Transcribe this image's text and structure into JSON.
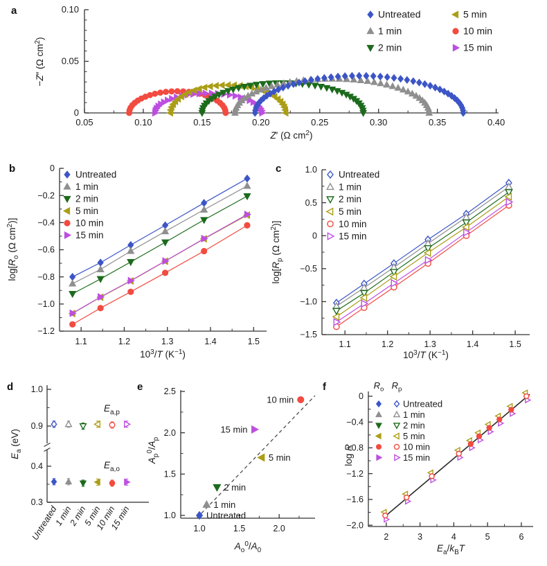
{
  "panel_labels": {
    "a": "a",
    "b": "b",
    "c": "c",
    "d": "d",
    "e": "e",
    "f": "f"
  },
  "figure": {
    "background": "#ffffff",
    "axis_color": "#333333",
    "fit_line_color": "#2b2b2b",
    "treatments": [
      {
        "label": "Untreated",
        "marker": "diamond",
        "color": "#3c55c6"
      },
      {
        "label": "1 min",
        "marker": "tri-up",
        "color": "#8f8f8f"
      },
      {
        "label": "2 min",
        "marker": "tri-down",
        "color": "#1c6b1c"
      },
      {
        "label": "5 min",
        "marker": "tri-left",
        "color": "#ab9e17"
      },
      {
        "label": "10 min",
        "marker": "circle",
        "color": "#f24b40"
      },
      {
        "label": "15 min",
        "marker": "tri-right",
        "color": "#bd4fe0"
      }
    ]
  },
  "chart_data": [
    {
      "panel": "a",
      "type": "scatter",
      "subtype": "nyquist",
      "xlabel": "*Z*′ (Ω cm^2^)",
      "ylabel": "−*Z*″ (Ω cm^2^)",
      "xlim": [
        0.05,
        0.402
      ],
      "ylim": [
        0,
        0.1
      ],
      "xticks": {
        "values": [
          0.05,
          0.1,
          0.15,
          0.2,
          0.25,
          0.3,
          0.35,
          0.4
        ],
        "labels": [
          "0.05",
          "0.10",
          "0.15",
          "0.20",
          "0.25",
          "0.30",
          "0.35",
          "0.40"
        ]
      },
      "yticks": {
        "values": [
          0,
          0.05,
          0.1
        ],
        "labels": [
          "0",
          "0.05",
          "0.10"
        ]
      },
      "minor": {
        "x": 0.025,
        "y": 0.01
      },
      "legend_columns": [
        [
          "Untreated",
          "1 min",
          "2 min"
        ],
        [
          "5 min",
          "10 min",
          "15 min"
        ]
      ],
      "series": [
        {
          "name": "10 min",
          "x_start": 0.088,
          "x_end": 0.17,
          "peak": 0.021,
          "points": 26
        },
        {
          "name": "15 min",
          "x_start": 0.11,
          "x_end": 0.201,
          "peak": 0.019,
          "points": 27
        },
        {
          "name": "5 min",
          "x_start": 0.123,
          "x_end": 0.221,
          "peak": 0.027,
          "points": 30
        },
        {
          "name": "2 min",
          "x_start": 0.15,
          "x_end": 0.287,
          "peak": 0.029,
          "points": 38
        },
        {
          "name": "1 min",
          "x_start": 0.178,
          "x_end": 0.343,
          "peak": 0.033,
          "points": 42
        },
        {
          "name": "Untreated",
          "x_start": 0.195,
          "x_end": 0.372,
          "peak": 0.036,
          "points": 46
        }
      ]
    },
    {
      "panel": "b",
      "type": "line",
      "subtype": "arrhenius",
      "marker_fill": "filled",
      "xlabel": "10^3^/*T* (K^−1^)",
      "ylabel": "log[*R*~o~ (Ω cm^2^)]",
      "xlim": [
        1.05,
        1.53
      ],
      "ylim": [
        -1.2,
        0
      ],
      "xticks": {
        "values": [
          1.1,
          1.2,
          1.3,
          1.4,
          1.5
        ],
        "labels": [
          "1.1",
          "1.2",
          "1.3",
          "1.4",
          "1.5"
        ]
      },
      "yticks": {
        "values": [
          0,
          -0.2,
          -0.4,
          -0.6,
          -0.8,
          -1.0,
          -1.2
        ],
        "labels": [
          "0",
          "−0.2",
          "−0.4",
          "−0.6",
          "−0.8",
          "−1.0",
          "−1.2"
        ]
      },
      "minor": {
        "x": 0.05,
        "y": 0.1
      },
      "x": [
        1.08,
        1.145,
        1.215,
        1.295,
        1.385,
        1.485
      ],
      "series": [
        {
          "name": "Untreated",
          "values": [
            -0.8,
            -0.695,
            -0.565,
            -0.42,
            -0.255,
            -0.075
          ]
        },
        {
          "name": "1 min",
          "values": [
            -0.85,
            -0.745,
            -0.61,
            -0.465,
            -0.305,
            -0.13
          ]
        },
        {
          "name": "2 min",
          "values": [
            -0.925,
            -0.815,
            -0.69,
            -0.545,
            -0.38,
            -0.205
          ]
        },
        {
          "name": "5 min",
          "values": [
            -1.07,
            -0.95,
            -0.83,
            -0.685,
            -0.52,
            -0.345
          ]
        },
        {
          "name": "10 min",
          "values": [
            -1.15,
            -1.03,
            -0.91,
            -0.77,
            -0.61,
            -0.42
          ]
        },
        {
          "name": "15 min",
          "values": [
            -1.068,
            -0.948,
            -0.828,
            -0.683,
            -0.518,
            -0.34
          ]
        }
      ],
      "legend": [
        "Untreated",
        "1 min",
        "2 min",
        "5 min",
        "10 min",
        "15 min"
      ]
    },
    {
      "panel": "c",
      "type": "line",
      "subtype": "arrhenius",
      "marker_fill": "open",
      "xlabel": "10^3^/*T* (K^−1^)",
      "ylabel": "log[*R*~p~ (Ω cm^2^)]",
      "xlim": [
        1.046,
        1.534
      ],
      "ylim": [
        -1.5,
        1.0
      ],
      "xticks": {
        "values": [
          1.1,
          1.2,
          1.3,
          1.4,
          1.5
        ],
        "labels": [
          "1.1",
          "1.2",
          "1.3",
          "1.4",
          "1.5"
        ]
      },
      "yticks": {
        "values": [
          1.0,
          0.5,
          0,
          -0.5,
          -1.0,
          -1.5
        ],
        "labels": [
          "1.0",
          "0.5",
          "0",
          "−0.5",
          "−1.0",
          "−1.5"
        ]
      },
      "minor": {
        "x": 0.05,
        "y": 0.25
      },
      "x": [
        1.08,
        1.145,
        1.215,
        1.295,
        1.385,
        1.485
      ],
      "series": [
        {
          "name": "Untreated",
          "values": [
            -1.02,
            -0.73,
            -0.42,
            -0.06,
            0.33,
            0.8
          ]
        },
        {
          "name": "1 min",
          "values": [
            -1.07,
            -0.79,
            -0.48,
            -0.12,
            0.28,
            0.74
          ]
        },
        {
          "name": "2 min",
          "values": [
            -1.14,
            -0.87,
            -0.55,
            -0.19,
            0.2,
            0.66
          ]
        },
        {
          "name": "5 min",
          "values": [
            -1.23,
            -0.94,
            -0.62,
            -0.26,
            0.13,
            0.59
          ]
        },
        {
          "name": "10 min",
          "values": [
            -1.38,
            -1.09,
            -0.78,
            -0.42,
            0.0,
            0.46
          ]
        },
        {
          "name": "15 min",
          "values": [
            -1.31,
            -1.03,
            -0.72,
            -0.37,
            0.05,
            0.51
          ]
        }
      ],
      "legend": [
        "Untreated",
        "1 min",
        "2 min",
        "5 min",
        "10 min",
        "15 min"
      ]
    },
    {
      "panel": "d",
      "type": "scatter",
      "subtype": "broken-axis",
      "ylabel": "*E*~a~ (eV)",
      "categories": [
        "Untreated",
        "1 min",
        "2 min",
        "5 min",
        "10 min",
        "15 min"
      ],
      "yticks": {
        "values": [
          1.0,
          0.9,
          0.4,
          0.3
        ],
        "labels": [
          "1.0",
          "0.9",
          "0.4",
          "0.3"
        ]
      },
      "minor_y": [
        0.95,
        0.35
      ],
      "series": [
        {
          "name": "Ea,p",
          "annotation": "*E*~a,p~",
          "fill": "open",
          "values": [
            0.905,
            0.905,
            0.9,
            0.905,
            0.903,
            0.905
          ]
        },
        {
          "name": "Ea,o",
          "annotation": "*E*~a,o~",
          "fill": "filled",
          "values": [
            0.357,
            0.357,
            0.353,
            0.356,
            0.353,
            0.356
          ]
        }
      ]
    },
    {
      "panel": "e",
      "type": "scatter",
      "subtype": "labeled-scatter",
      "xlabel": "*A*~o~^0^/*A*~0~",
      "ylabel": "*A*~p~^0^/*A*~p~",
      "xlim": [
        0.765,
        2.45
      ],
      "ylim": [
        0.966,
        2.517
      ],
      "xticks": {
        "values": [
          1.0,
          1.5,
          2.0
        ],
        "labels": [
          "1.0",
          "1.5",
          "2.0"
        ]
      },
      "yticks": {
        "values": [
          1.0,
          1.5,
          2.0,
          2.5
        ],
        "labels": [
          "1.0",
          "1.5",
          "2.0",
          "2.5"
        ]
      },
      "minor": {
        "x": 0.25,
        "y": 0.25
      },
      "dashed_line": {
        "from": [
          0.97,
          0.97
        ],
        "to": [
          2.45,
          2.45
        ]
      },
      "points": [
        {
          "name": "Untreated",
          "x": 1.0,
          "y": 1.0,
          "label_side": "right"
        },
        {
          "name": "1 min",
          "x": 1.09,
          "y": 1.13,
          "label_side": "right"
        },
        {
          "name": "2 min",
          "x": 1.22,
          "y": 1.34,
          "label_side": "right"
        },
        {
          "name": "5 min",
          "x": 1.78,
          "y": 1.7,
          "label_side": "right"
        },
        {
          "name": "15 min",
          "x": 1.69,
          "y": 2.04,
          "label_side": "left"
        },
        {
          "name": "10 min",
          "x": 2.27,
          "y": 2.4,
          "label_side": "left"
        }
      ]
    },
    {
      "panel": "f",
      "type": "scatter",
      "subtype": "collapse",
      "xlabel": "*E*~a~/*k*~B~*T*",
      "ylabel": "log *R*",
      "xlim": [
        1.47,
        6.35
      ],
      "ylim": [
        -2.02,
        0.075
      ],
      "xticks": {
        "values": [
          2,
          3,
          4,
          5,
          6
        ],
        "labels": [
          "2",
          "3",
          "4",
          "5",
          "6"
        ]
      },
      "yticks": {
        "values": [
          0,
          -0.4,
          -0.8,
          -1.2,
          -1.6,
          -2.0
        ],
        "labels": [
          "0",
          "−0.4",
          "−0.8",
          "−1.2",
          "−1.6",
          "−2.0"
        ]
      },
      "minor": {
        "x": 0.5,
        "y": 0.2
      },
      "fit_line": {
        "from": [
          1.95,
          -1.87
        ],
        "to": [
          6.25,
          0.03
        ]
      },
      "points": [
        {
          "x": 1.97,
          "y": -1.85,
          "solid": false
        },
        {
          "x": 2.6,
          "y": -1.57,
          "solid": false
        },
        {
          "x": 3.35,
          "y": -1.24,
          "solid": false
        },
        {
          "x": 4.15,
          "y": -0.89,
          "solid": false
        },
        {
          "x": 4.5,
          "y": -0.74,
          "solid": true
        },
        {
          "x": 4.75,
          "y": -0.62,
          "solid": true
        },
        {
          "x": 5.05,
          "y": -0.49,
          "solid": true
        },
        {
          "x": 5.35,
          "y": -0.36,
          "solid": true
        },
        {
          "x": 5.7,
          "y": -0.21,
          "solid": true
        },
        {
          "x": 6.15,
          "y": 0.0,
          "solid": false
        }
      ],
      "legend_headers": [
        "*R*~o~",
        "*R*~p~"
      ],
      "legend": [
        "Untreated",
        "1 min",
        "2 min",
        "5 min",
        "10 min",
        "15 min"
      ]
    }
  ]
}
